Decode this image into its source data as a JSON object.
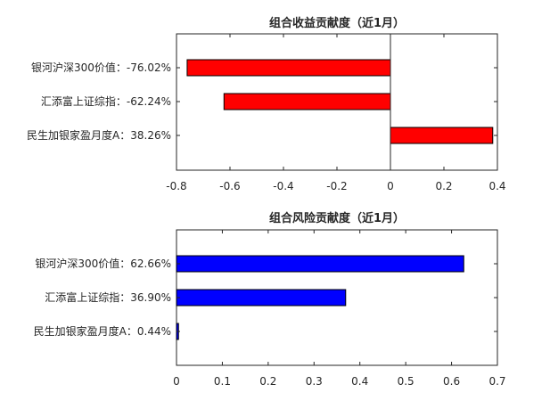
{
  "chart_data": [
    {
      "type": "bar",
      "orientation": "horizontal",
      "title": "组合收益贡献度（近1月）",
      "categories": [
        "银河沪深300价值：-76.02%",
        "汇添富上证综指：-62.24%",
        "民生加银家盈月度A：38.26%"
      ],
      "values": [
        -0.7602,
        -0.6224,
        0.3826
      ],
      "xlim": [
        -0.8,
        0.4
      ],
      "xticks": [
        "-0.8",
        "-0.6",
        "-0.4",
        "-0.2",
        "0",
        "0.2",
        "0.4"
      ],
      "xtick_values": [
        -0.8,
        -0.6,
        -0.4,
        -0.2,
        0,
        0.2,
        0.4
      ],
      "bar_color": "#ff0000",
      "zero_line": true,
      "grid": false
    },
    {
      "type": "bar",
      "orientation": "horizontal",
      "title": "组合风险贡献度（近1月）",
      "categories": [
        "银河沪深300价值：62.66%",
        "汇添富上证综指：36.90%",
        "民生加银家盈月度A：0.44%"
      ],
      "values": [
        0.6266,
        0.369,
        0.0044
      ],
      "xlim": [
        0,
        0.7
      ],
      "xticks": [
        "0",
        "0.1",
        "0.2",
        "0.3",
        "0.4",
        "0.5",
        "0.6",
        "0.7"
      ],
      "xtick_values": [
        0,
        0.1,
        0.2,
        0.3,
        0.4,
        0.5,
        0.6,
        0.7
      ],
      "bar_color": "#0000ff",
      "zero_line": false,
      "grid": false
    }
  ]
}
